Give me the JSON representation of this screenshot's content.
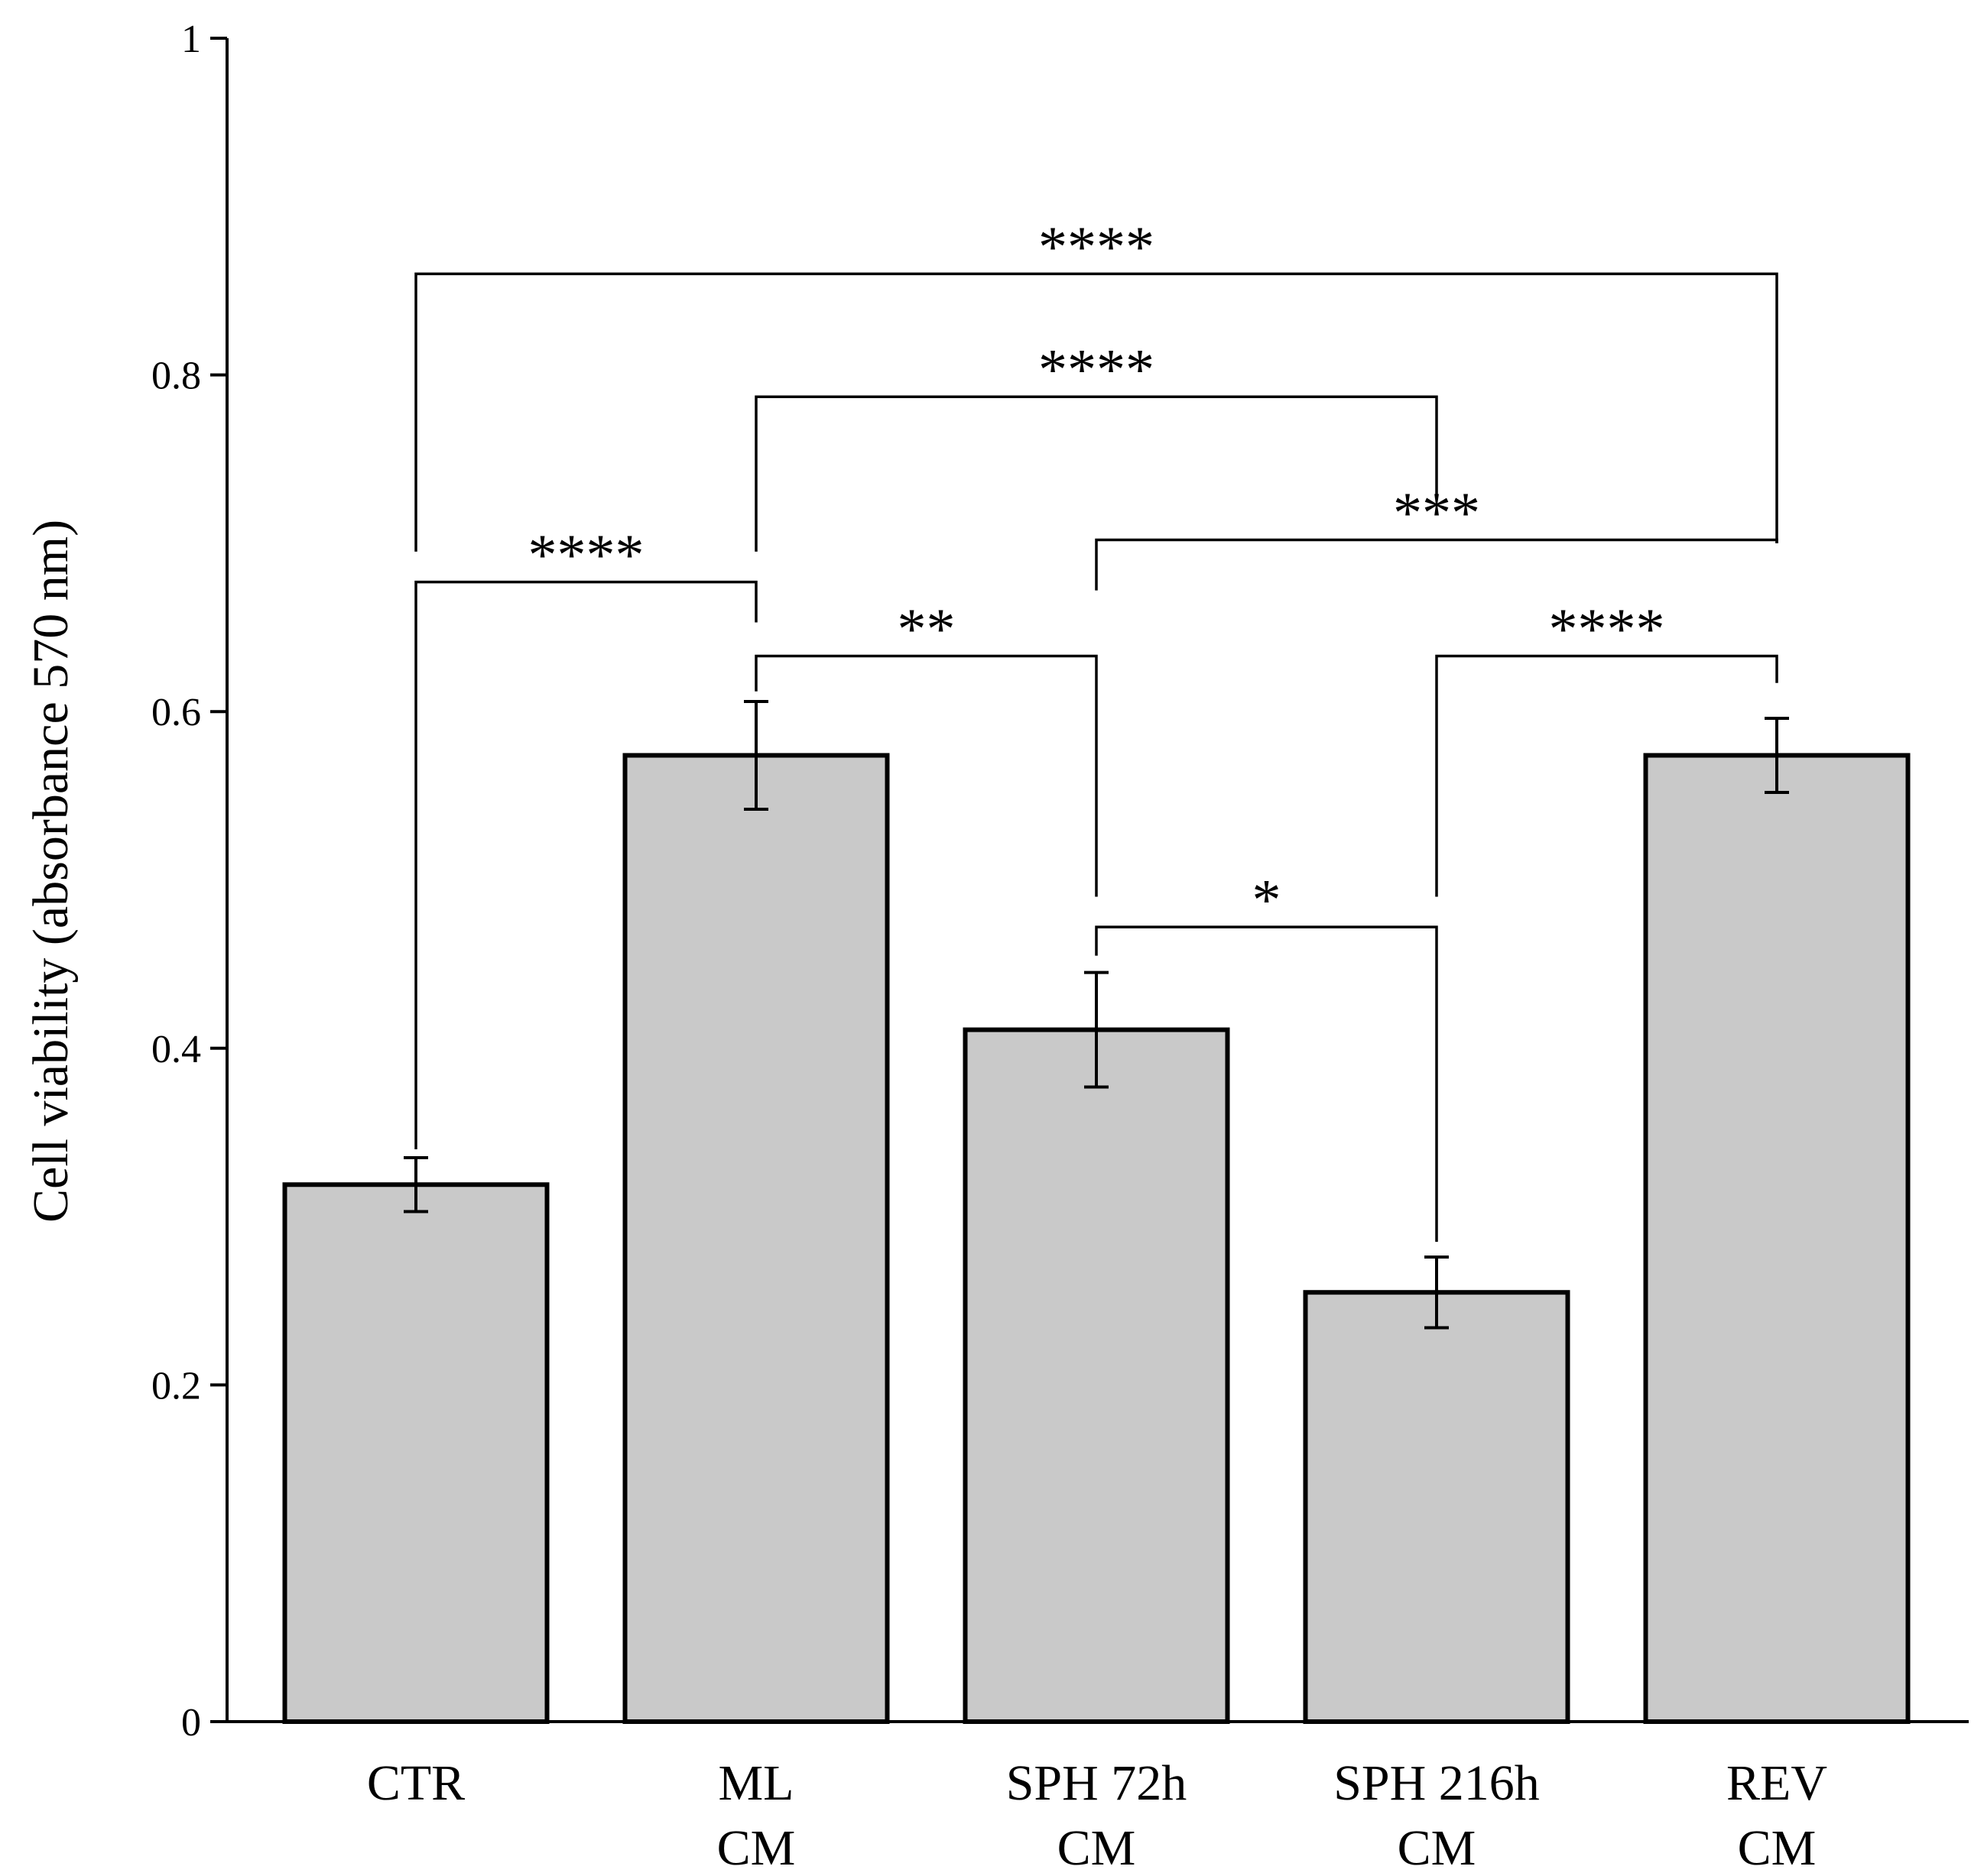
{
  "chart_data": {
    "type": "bar",
    "title": "",
    "xlabel": "",
    "ylabel": "Cell viability (absorbance 570 nm)",
    "ylim": [
      0,
      1
    ],
    "yticks": [
      {
        "value": 0,
        "label": "0"
      },
      {
        "value": 0.2,
        "label": "0.2"
      },
      {
        "value": 0.4,
        "label": "0.4"
      },
      {
        "value": 0.6,
        "label": "0.6"
      },
      {
        "value": 0.8,
        "label": "0.8"
      },
      {
        "value": 1,
        "label": "1"
      }
    ],
    "categories": [
      {
        "line1": "CTR",
        "line2": ""
      },
      {
        "line1": "ML",
        "line2": "CM"
      },
      {
        "line1": "SPH 72h",
        "line2": "CM"
      },
      {
        "line1": "SPH 216h",
        "line2": "CM"
      },
      {
        "line1": "REV",
        "line2": "CM"
      }
    ],
    "values": [
      0.319,
      0.574,
      0.411,
      0.255,
      0.574
    ],
    "errors": [
      0.016,
      0.032,
      0.034,
      0.021,
      0.022
    ],
    "bar_color": "#c9c9c9",
    "significance": [
      {
        "from": 0,
        "to": 4,
        "label": "****",
        "level": 0.86,
        "left_end": 0.695,
        "right_end": 0.7
      },
      {
        "from": 1,
        "to": 3,
        "label": "****",
        "level": 0.787,
        "left_end": 0.695,
        "right_end": 0.727
      },
      {
        "from": 2,
        "to": 4,
        "label": "***",
        "level": 0.702,
        "left_end": 0.672,
        "right_end": 0.7
      },
      {
        "from": 0,
        "to": 1,
        "label": "****",
        "level": 0.677,
        "left_end": 0.34,
        "right_end": 0.653
      },
      {
        "from": 1,
        "to": 2,
        "label": "**",
        "level": 0.633,
        "left_end": 0.612,
        "right_end": 0.49
      },
      {
        "from": 3,
        "to": 4,
        "label": "****",
        "level": 0.633,
        "left_end": 0.49,
        "right_end": 0.617
      },
      {
        "from": 2,
        "to": 3,
        "label": "*",
        "level": 0.472,
        "left_end": 0.455,
        "right_end": 0.285
      }
    ]
  }
}
